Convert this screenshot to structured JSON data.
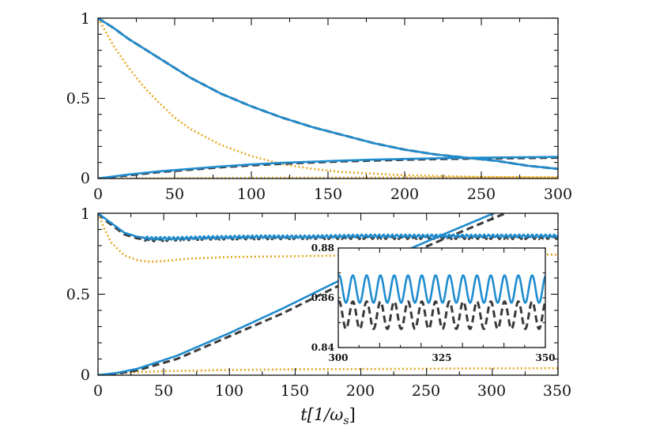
{
  "chart_data": [
    {
      "type": "line",
      "panel": "top",
      "xlim": [
        0,
        300
      ],
      "ylim": [
        0,
        1
      ],
      "xticks": [
        "0",
        "50",
        "100",
        "150",
        "200",
        "250",
        "300"
      ],
      "yticks": [
        "0",
        "0.5",
        "1"
      ],
      "series": [
        {
          "name": "decay (blue)",
          "color": "#1f8ccf",
          "style": "solid",
          "x": [
            0,
            10,
            20,
            30,
            40,
            50,
            60,
            70,
            80,
            90,
            100,
            120,
            140,
            160,
            180,
            200,
            220,
            240,
            260,
            280,
            300
          ],
          "y": [
            1.0,
            0.94,
            0.87,
            0.81,
            0.75,
            0.69,
            0.63,
            0.58,
            0.53,
            0.49,
            0.45,
            0.38,
            0.32,
            0.27,
            0.22,
            0.18,
            0.15,
            0.13,
            0.11,
            0.08,
            0.06
          ]
        },
        {
          "name": "decay (dashed)",
          "color": "#3a3a3a",
          "style": "dashed",
          "x": [
            0,
            10,
            20,
            30,
            40,
            50,
            60,
            70,
            80,
            90,
            100,
            120,
            140,
            160,
            180,
            200,
            220,
            240,
            260,
            280,
            300
          ],
          "y": [
            1.0,
            0.94,
            0.87,
            0.81,
            0.75,
            0.69,
            0.63,
            0.58,
            0.53,
            0.49,
            0.45,
            0.38,
            0.32,
            0.27,
            0.22,
            0.18,
            0.15,
            0.13,
            0.11,
            0.08,
            0.06
          ]
        },
        {
          "name": "decay (dotted)",
          "color": "#e8a820",
          "style": "dotted",
          "x": [
            0,
            10,
            20,
            30,
            40,
            50,
            60,
            70,
            80,
            100,
            120,
            140,
            160,
            180,
            200,
            250,
            300
          ],
          "y": [
            1.0,
            0.83,
            0.69,
            0.57,
            0.47,
            0.38,
            0.31,
            0.26,
            0.21,
            0.14,
            0.09,
            0.06,
            0.04,
            0.03,
            0.02,
            0.01,
            0.005
          ]
        },
        {
          "name": "rise (blue)",
          "color": "#1f8ccf",
          "style": "solid",
          "x": [
            0,
            20,
            40,
            60,
            80,
            100,
            120,
            140,
            160,
            180,
            200,
            220,
            240,
            260,
            280,
            300
          ],
          "y": [
            0.0,
            0.025,
            0.045,
            0.06,
            0.075,
            0.088,
            0.098,
            0.105,
            0.112,
            0.118,
            0.122,
            0.126,
            0.129,
            0.131,
            0.133,
            0.135
          ]
        },
        {
          "name": "rise (dashed)",
          "color": "#3a3a3a",
          "style": "dashed",
          "x": [
            0,
            20,
            40,
            60,
            80,
            100,
            120,
            140,
            160,
            180,
            200,
            220,
            240,
            260,
            280,
            300
          ],
          "y": [
            0.0,
            0.02,
            0.04,
            0.055,
            0.07,
            0.082,
            0.092,
            0.1,
            0.107,
            0.112,
            0.117,
            0.121,
            0.124,
            0.126,
            0.128,
            0.13
          ]
        },
        {
          "name": "rise (dotted)",
          "color": "#e8a820",
          "style": "dotted",
          "x": [
            0,
            50,
            100,
            150,
            200,
            250,
            300
          ],
          "y": [
            0.0,
            0.002,
            0.004,
            0.005,
            0.006,
            0.007,
            0.008
          ]
        }
      ]
    },
    {
      "type": "line",
      "panel": "bottom",
      "xlim": [
        0,
        350
      ],
      "ylim": [
        0,
        1
      ],
      "xticks": [
        "0",
        "50",
        "100",
        "150",
        "200",
        "250",
        "300",
        "350"
      ],
      "yticks": [
        "0",
        "0.5",
        "1"
      ],
      "xlabel": "t[1/ω",
      "xlabel_sub": "s",
      "xlabel_close": "]",
      "series": [
        {
          "name": "upper (blue)",
          "color": "#1f8ccf",
          "style": "solid",
          "x": [
            0,
            5,
            10,
            15,
            20,
            30,
            40,
            60,
            80,
            120,
            160,
            200,
            240,
            280,
            320,
            350
          ],
          "y": [
            1.0,
            0.97,
            0.94,
            0.91,
            0.88,
            0.855,
            0.845,
            0.845,
            0.85,
            0.855,
            0.855,
            0.86,
            0.86,
            0.86,
            0.86,
            0.86
          ]
        },
        {
          "name": "upper (dashed)",
          "color": "#3a3a3a",
          "style": "dashed",
          "x": [
            0,
            5,
            10,
            15,
            20,
            30,
            40,
            60,
            80,
            120,
            160,
            200,
            240,
            280,
            320,
            350
          ],
          "y": [
            1.0,
            0.96,
            0.93,
            0.9,
            0.87,
            0.845,
            0.835,
            0.84,
            0.845,
            0.848,
            0.85,
            0.85,
            0.85,
            0.85,
            0.85,
            0.85
          ]
        },
        {
          "name": "upper (dotted)",
          "color": "#e8a820",
          "style": "dotted",
          "x": [
            0,
            5,
            10,
            20,
            30,
            40,
            50,
            70,
            100,
            150,
            200,
            250,
            300,
            350
          ],
          "y": [
            1.0,
            0.9,
            0.82,
            0.74,
            0.71,
            0.7,
            0.705,
            0.72,
            0.73,
            0.735,
            0.74,
            0.742,
            0.744,
            0.745
          ]
        },
        {
          "name": "ramp (blue)",
          "color": "#1f8ccf",
          "style": "solid",
          "x": [
            0,
            15,
            30,
            60,
            100,
            140,
            180,
            220,
            260,
            310
          ],
          "y": [
            0.0,
            0.015,
            0.04,
            0.12,
            0.26,
            0.41,
            0.57,
            0.72,
            0.86,
            1.03
          ]
        },
        {
          "name": "ramp (dashed)",
          "color": "#3a3a3a",
          "style": "dashed",
          "x": [
            0,
            15,
            30,
            60,
            100,
            140,
            180,
            220,
            260,
            310
          ],
          "y": [
            0.0,
            0.01,
            0.03,
            0.1,
            0.24,
            0.38,
            0.54,
            0.69,
            0.83,
            1.0
          ]
        },
        {
          "name": "floor (dotted)",
          "color": "#e8a820",
          "style": "dotted",
          "x": [
            0,
            20,
            50,
            100,
            150,
            200,
            250,
            300,
            350
          ],
          "y": [
            0.0,
            0.015,
            0.025,
            0.032,
            0.036,
            0.038,
            0.04,
            0.042,
            0.043
          ]
        }
      ]
    },
    {
      "type": "line",
      "panel": "inset",
      "xlim": [
        300,
        350
      ],
      "ylim": [
        0.84,
        0.88
      ],
      "xticks": [
        "300",
        "325",
        "350"
      ],
      "yticks": [
        "0.84",
        "0.86",
        "0.88"
      ],
      "oscillation_period": 3.33,
      "series": [
        {
          "name": "oscillation (blue)",
          "color": "#1f8ccf",
          "style": "solid",
          "center": 0.8635,
          "amplitude": 0.0055
        },
        {
          "name": "oscillation (dashed)",
          "color": "#3a3a3a",
          "style": "dashed",
          "center": 0.853,
          "amplitude": 0.0055
        }
      ]
    }
  ]
}
